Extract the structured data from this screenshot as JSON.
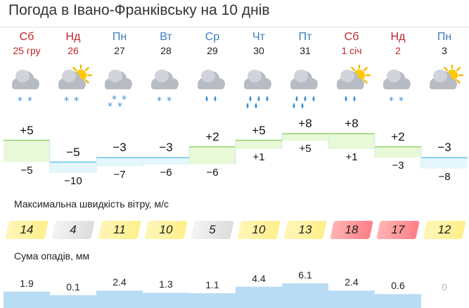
{
  "title": "Погода в Івано-Франківську на 10 днів",
  "wind_label": "Максимальна швидкість вітру, м/с",
  "precip_label": "Сума опадів, мм",
  "colors": {
    "weekday": "#3a7cc1",
    "weekend": "#c0232b",
    "warm_band": "#e8f9d8",
    "warm_border": "#8fd36a",
    "cold_band": "#e6f7fc",
    "cold_border": "#63c4e8",
    "precip": "#b9dcf5"
  },
  "days": [
    {
      "name": "Сб",
      "date": "25 гру",
      "weekend": true,
      "icon": "cloud-snow-icon",
      "tmax": "+5",
      "tmin": "−5",
      "max_val": 5,
      "min_val": -5,
      "wind": "14",
      "wind_level": "yellow",
      "precip": "1.9",
      "precip_mm": 1.9
    },
    {
      "name": "Нд",
      "date": "26",
      "weekend": true,
      "icon": "sun-cloud-snow-icon",
      "tmax": "−5",
      "tmin": "−10",
      "max_val": -5,
      "min_val": -10,
      "wind": "4",
      "wind_level": "gray",
      "precip": "0.1",
      "precip_mm": 0.1
    },
    {
      "name": "Пн",
      "date": "27",
      "weekend": false,
      "icon": "cloud-heavy-snow-icon",
      "tmax": "−3",
      "tmin": "−7",
      "max_val": -3,
      "min_val": -7,
      "wind": "11",
      "wind_level": "yellow",
      "precip": "2.4",
      "precip_mm": 2.4
    },
    {
      "name": "Вт",
      "date": "28",
      "weekend": false,
      "icon": "cloud-snow-icon",
      "tmax": "−3",
      "tmin": "−6",
      "max_val": -3,
      "min_val": -6,
      "wind": "10",
      "wind_level": "yellow",
      "precip": "1.3",
      "precip_mm": 1.3
    },
    {
      "name": "Ср",
      "date": "29",
      "weekend": false,
      "icon": "cloud-rain-icon",
      "tmax": "+2",
      "tmin": "−6",
      "max_val": 2,
      "min_val": -6,
      "wind": "5",
      "wind_level": "gray",
      "precip": "1.1",
      "precip_mm": 1.1
    },
    {
      "name": "Чт",
      "date": "30",
      "weekend": false,
      "icon": "cloud-heavy-rain-icon",
      "tmax": "+5",
      "tmin": "+1",
      "max_val": 5,
      "min_val": 1,
      "wind": "10",
      "wind_level": "yellow",
      "precip": "4.4",
      "precip_mm": 4.4
    },
    {
      "name": "Пт",
      "date": "31",
      "weekend": false,
      "icon": "cloud-heavy-rain-icon",
      "tmax": "+8",
      "tmin": "+5",
      "max_val": 8,
      "min_val": 5,
      "wind": "13",
      "wind_level": "yellow",
      "precip": "6.1",
      "precip_mm": 6.1
    },
    {
      "name": "Сб",
      "date": "1 січ",
      "weekend": true,
      "icon": "sun-cloud-rain-icon",
      "tmax": "+8",
      "tmin": "+1",
      "max_val": 8,
      "min_val": 1,
      "wind": "18",
      "wind_level": "red",
      "precip": "2.4",
      "precip_mm": 2.4
    },
    {
      "name": "Нд",
      "date": "2",
      "weekend": true,
      "icon": "cloud-snow-icon",
      "tmax": "+2",
      "tmin": "−3",
      "max_val": 2,
      "min_val": -3,
      "wind": "17",
      "wind_level": "red",
      "precip": "0.6",
      "precip_mm": 0.6
    },
    {
      "name": "Пн",
      "date": "3",
      "weekend": false,
      "icon": "sun-cloud-icon",
      "tmax": "−3",
      "tmin": "−8",
      "max_val": -3,
      "min_val": -8,
      "wind": "12",
      "wind_level": "yellow",
      "precip": "0",
      "precip_mm": 0
    }
  ]
}
